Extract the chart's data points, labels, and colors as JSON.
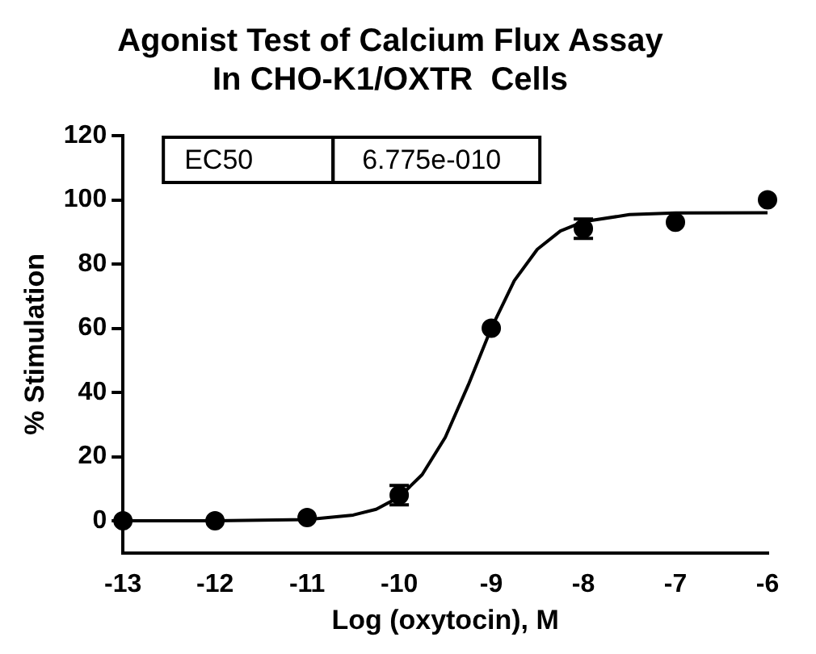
{
  "chart_data": {
    "type": "scatter",
    "title": "Agonist Test of Calcium Flux Assay\nIn CHO-K1/OXTR  Cells",
    "xlabel": "Log (oxytocin), M",
    "ylabel": "% Stimulation",
    "annotations": [
      "EC50",
      "6.775e-010"
    ],
    "series": [
      {
        "color": "#000000",
        "x": [
          -13,
          -12,
          -11,
          -10,
          -9,
          -8,
          -7,
          -6
        ],
        "values": [
          0,
          0,
          1,
          8,
          60,
          91,
          93,
          100
        ],
        "errors": [
          null,
          null,
          null,
          3,
          null,
          3,
          null,
          null
        ],
        "marker": "circle"
      },
      {
        "type": "line",
        "color": "#000000",
        "x": [
          -13,
          -12,
          -11,
          -10.5,
          -10.25,
          -10,
          -9.75,
          -9.5,
          -9.25,
          -9,
          -8.75,
          -8.5,
          -8.25,
          -8,
          -7.5,
          -7,
          -6
        ],
        "values": [
          0,
          0,
          0.4,
          1.8,
          3.6,
          7.4,
          14.4,
          26,
          42.3,
          60,
          74.8,
          84.6,
          90.3,
          93.2,
          95.4,
          95.9,
          96
        ],
        "marker": "none",
        "line_style": "solid"
      }
    ],
    "xlim": [
      -13,
      -6
    ],
    "xticks": [
      -13,
      -12,
      -11,
      -10,
      -9,
      -8,
      -7,
      -6
    ],
    "ylim": [
      -10,
      120
    ],
    "yticks": [
      0,
      20,
      40,
      60,
      80,
      100,
      120
    ],
    "grid": false,
    "legend": false
  }
}
